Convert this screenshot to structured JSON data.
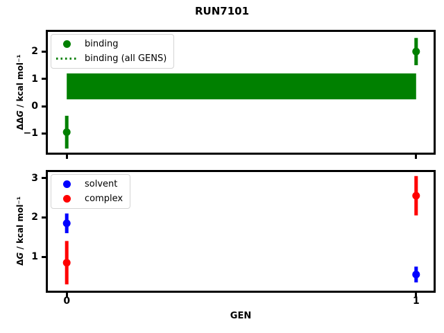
{
  "title": "RUN7101",
  "colors": {
    "binding": "#008000",
    "solvent": "#0000ff",
    "complex": "#ff0000",
    "axis": "#000000"
  },
  "chart_data": [
    {
      "type": "scatter",
      "panel": "binding",
      "ylabel_prefix": "ΔΔ",
      "ylabel_var": "G",
      "ylabel_unit": " / kcal mol⁻¹",
      "xlabel": "",
      "xlim": [
        -0.054,
        1.05
      ],
      "ylim": [
        -1.7,
        2.72
      ],
      "xticks": [
        0,
        1
      ],
      "xticklabels": [],
      "yticks": [
        2,
        1,
        0,
        -1
      ],
      "yticklabels": [
        "2",
        "1",
        "0",
        "−1"
      ],
      "series": [
        {
          "name": "binding",
          "color": "#008000",
          "marker": "circle",
          "x": [
            0,
            1
          ],
          "y": [
            -0.95,
            2.0
          ],
          "yerr": [
            0.6,
            0.5
          ]
        }
      ],
      "band": {
        "name": "binding (all GENS)",
        "color": "#008000",
        "x": [
          0,
          1
        ],
        "y_low": 0.25,
        "y_high": 1.2,
        "linestyle": "dotted"
      },
      "legend": [
        {
          "label": "binding",
          "marker": "circle",
          "color": "#008000"
        },
        {
          "label": "binding (all GENS)",
          "marker": "dotted-line",
          "color": "#008000"
        }
      ],
      "legend_position": "upper left"
    },
    {
      "type": "scatter",
      "panel": "dG",
      "ylabel_prefix": "Δ",
      "ylabel_var": "G",
      "ylabel_unit": " / kcal mol⁻¹",
      "xlabel": "GEN",
      "xlim": [
        -0.054,
        1.05
      ],
      "ylim": [
        0.14,
        3.15
      ],
      "xticks": [
        0,
        1
      ],
      "xticklabels": [
        "0",
        "1"
      ],
      "yticks": [
        3,
        2,
        1
      ],
      "yticklabels": [
        "3",
        "2",
        "1"
      ],
      "series": [
        {
          "name": "solvent",
          "color": "#0000ff",
          "marker": "circle",
          "x": [
            0,
            1
          ],
          "y": [
            1.85,
            0.55
          ],
          "yerr": [
            0.25,
            0.2
          ]
        },
        {
          "name": "complex",
          "color": "#ff0000",
          "marker": "circle",
          "x": [
            0,
            1
          ],
          "y": [
            0.85,
            2.55
          ],
          "yerr": [
            0.55,
            0.5
          ]
        }
      ],
      "legend": [
        {
          "label": "solvent",
          "marker": "circle",
          "color": "#0000ff"
        },
        {
          "label": "complex",
          "marker": "circle",
          "color": "#ff0000"
        }
      ],
      "legend_position": "upper left"
    }
  ]
}
